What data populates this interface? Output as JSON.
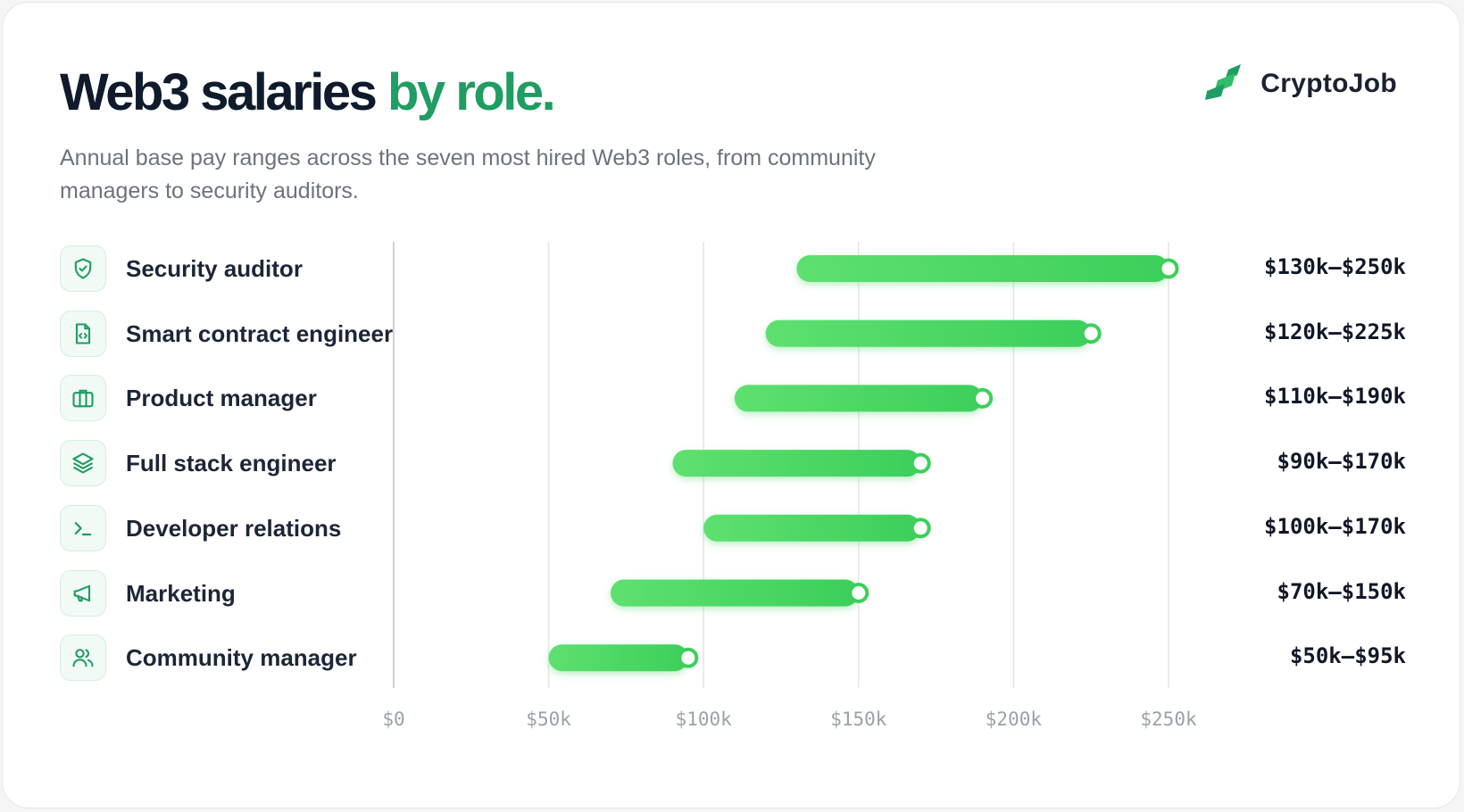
{
  "header": {
    "title_main": "Web3 salaries",
    "title_accent": "by role.",
    "subtitle": "Annual base pay ranges across the seven most hired Web3 roles, from community managers to security auditors."
  },
  "brand": {
    "name": "CryptoJob",
    "icon": "cryptojob-logo-icon"
  },
  "colors": {
    "accent": "#1f9d62",
    "bar": "#5ee06f",
    "bar_dark": "#3ccf5a",
    "grid": "#e3e5e8",
    "title": "#0f1b2d"
  },
  "rows": [
    {
      "role": "Security auditor",
      "icon": "shield-icon",
      "range_label": "$130k–$250k"
    },
    {
      "role": "Smart contract engineer",
      "icon": "code-file-icon",
      "range_label": "$120k–$225k"
    },
    {
      "role": "Product manager",
      "icon": "briefcase-icon",
      "range_label": "$110k–$190k"
    },
    {
      "role": "Full stack engineer",
      "icon": "layers-icon",
      "range_label": "$90k–$170k"
    },
    {
      "role": "Developer relations",
      "icon": "terminal-icon",
      "range_label": "$100k–$170k"
    },
    {
      "role": "Marketing",
      "icon": "megaphone-icon",
      "range_label": "$70k–$150k"
    },
    {
      "role": "Community manager",
      "icon": "users-icon",
      "range_label": "$50k–$95k"
    }
  ],
  "chart_data": {
    "type": "bar",
    "orientation": "horizontal-range",
    "categories": [
      "Security auditor",
      "Smart contract engineer",
      "Product manager",
      "Full stack engineer",
      "Developer relations",
      "Marketing",
      "Community manager"
    ],
    "series": [
      {
        "low": [
          130,
          120,
          110,
          90,
          100,
          70,
          50
        ],
        "high": [
          250,
          225,
          190,
          170,
          170,
          150,
          95
        ]
      }
    ],
    "unit": "thousand USD",
    "xlim": [
      0,
      250
    ],
    "x_ticks": [
      0,
      50,
      100,
      150,
      200,
      250
    ],
    "x_tick_labels": [
      "$0",
      "$50k",
      "$100k",
      "$150k",
      "$200k",
      "$250k"
    ],
    "grid": true,
    "legend": "none"
  }
}
